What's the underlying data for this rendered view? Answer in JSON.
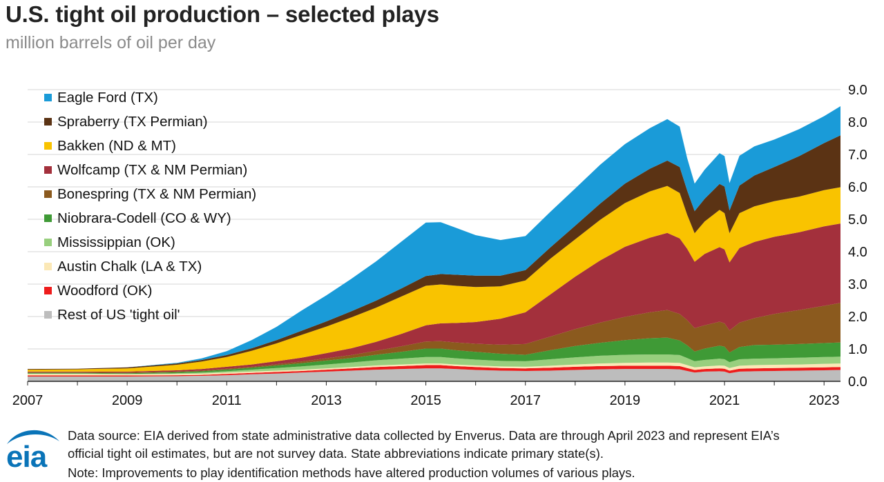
{
  "title": "U.S. tight oil production – selected plays",
  "subtitle": "million barrels of oil per day",
  "legend": [
    {
      "label": "Eagle Ford (TX)",
      "color": "#1a9bd8"
    },
    {
      "label": "Spraberry (TX Permian)",
      "color": "#5b3314"
    },
    {
      "label": "Bakken (ND & MT)",
      "color": "#f9c300"
    },
    {
      "label": "Wolfcamp (TX & NM Permian)",
      "color": "#a3303c"
    },
    {
      "label": "Bonespring (TX & NM Permian)",
      "color": "#8b5a1e"
    },
    {
      "label": "Niobrara-Codell (CO & WY)",
      "color": "#3f9a36"
    },
    {
      "label": "Mississippian (OK)",
      "color": "#98cf7e"
    },
    {
      "label": "Austin Chalk (LA & TX)",
      "color": "#fbe8b6"
    },
    {
      "label": "Woodford (OK)",
      "color": "#ee1c1c"
    },
    {
      "label": "Rest of US 'tight oil'",
      "color": "#bdbdbd"
    }
  ],
  "footer": {
    "logo_text": "eia",
    "source_line1": "Data source: EIA derived from state administrative data collected by Enverus. Data are through April 2023 and represent EIA’s",
    "source_line2": "official tight oil estimates, but are not survey data. State abbreviations indicate primary state(s).",
    "note": "Note: Improvements to play identification methods have altered production volumes of various plays."
  },
  "chart_data": {
    "type": "area",
    "stacked": true,
    "title": "U.S. tight oil production – selected plays",
    "ylabel": "million barrels of oil per day",
    "xlabel": "",
    "ylim": [
      0,
      9
    ],
    "xlim": [
      2007.0,
      2023.33
    ],
    "y_axis_side": "right",
    "y_ticks": [
      "0.0",
      "1.0",
      "2.0",
      "3.0",
      "4.0",
      "5.0",
      "6.0",
      "7.0",
      "8.0",
      "9.0"
    ],
    "x_ticks": [
      "2007",
      "2009",
      "2011",
      "2013",
      "2015",
      "2017",
      "2019",
      "2021",
      "2023"
    ],
    "grid": true,
    "legend_position": "top-left",
    "x": [
      2007.0,
      2008.0,
      2009.0,
      2010.0,
      2010.5,
      2011.0,
      2011.5,
      2012.0,
      2012.5,
      2013.0,
      2013.5,
      2014.0,
      2014.5,
      2015.0,
      2015.3,
      2015.6,
      2016.0,
      2016.5,
      2017.0,
      2017.5,
      2018.0,
      2018.5,
      2019.0,
      2019.5,
      2019.85,
      2020.1,
      2020.25,
      2020.4,
      2020.6,
      2020.9,
      2021.0,
      2021.1,
      2021.3,
      2021.6,
      2022.0,
      2022.5,
      2023.0,
      2023.33
    ],
    "series": [
      {
        "name": "Rest of US 'tight oil'",
        "values": [
          0.15,
          0.15,
          0.15,
          0.16,
          0.17,
          0.19,
          0.22,
          0.24,
          0.27,
          0.3,
          0.33,
          0.36,
          0.38,
          0.4,
          0.4,
          0.38,
          0.35,
          0.33,
          0.32,
          0.33,
          0.35,
          0.37,
          0.38,
          0.38,
          0.38,
          0.37,
          0.32,
          0.27,
          0.3,
          0.31,
          0.3,
          0.25,
          0.3,
          0.31,
          0.32,
          0.33,
          0.34,
          0.35
        ]
      },
      {
        "name": "Woodford (OK)",
        "values": [
          0.03,
          0.03,
          0.03,
          0.03,
          0.03,
          0.04,
          0.04,
          0.05,
          0.05,
          0.06,
          0.07,
          0.08,
          0.09,
          0.1,
          0.1,
          0.09,
          0.09,
          0.08,
          0.08,
          0.09,
          0.1,
          0.1,
          0.1,
          0.1,
          0.1,
          0.1,
          0.09,
          0.08,
          0.08,
          0.09,
          0.09,
          0.08,
          0.09,
          0.09,
          0.09,
          0.09,
          0.09,
          0.09
        ]
      },
      {
        "name": "Austin Chalk (LA & TX)",
        "values": [
          0.05,
          0.05,
          0.04,
          0.04,
          0.04,
          0.04,
          0.04,
          0.04,
          0.04,
          0.04,
          0.04,
          0.05,
          0.05,
          0.05,
          0.05,
          0.05,
          0.05,
          0.05,
          0.05,
          0.06,
          0.07,
          0.08,
          0.09,
          0.1,
          0.1,
          0.1,
          0.09,
          0.08,
          0.08,
          0.09,
          0.09,
          0.08,
          0.09,
          0.1,
          0.1,
          0.1,
          0.11,
          0.11
        ]
      },
      {
        "name": "Mississippian (OK)",
        "values": [
          0.01,
          0.01,
          0.01,
          0.02,
          0.03,
          0.04,
          0.06,
          0.08,
          0.1,
          0.12,
          0.14,
          0.16,
          0.18,
          0.2,
          0.2,
          0.19,
          0.18,
          0.17,
          0.17,
          0.2,
          0.22,
          0.24,
          0.25,
          0.25,
          0.25,
          0.24,
          0.22,
          0.19,
          0.2,
          0.21,
          0.2,
          0.18,
          0.2,
          0.2,
          0.2,
          0.21,
          0.21,
          0.21
        ]
      },
      {
        "name": "Niobrara-Codell (CO & WY)",
        "values": [
          0.02,
          0.02,
          0.02,
          0.03,
          0.04,
          0.05,
          0.06,
          0.08,
          0.1,
          0.12,
          0.14,
          0.17,
          0.21,
          0.26,
          0.26,
          0.25,
          0.24,
          0.22,
          0.2,
          0.28,
          0.35,
          0.4,
          0.45,
          0.5,
          0.52,
          0.45,
          0.39,
          0.3,
          0.35,
          0.4,
          0.39,
          0.3,
          0.38,
          0.42,
          0.42,
          0.42,
          0.43,
          0.44
        ]
      },
      {
        "name": "Bonespring (TX & NM Permian)",
        "values": [
          0.02,
          0.02,
          0.02,
          0.02,
          0.02,
          0.03,
          0.03,
          0.04,
          0.05,
          0.07,
          0.09,
          0.12,
          0.17,
          0.22,
          0.23,
          0.24,
          0.25,
          0.28,
          0.33,
          0.42,
          0.52,
          0.62,
          0.72,
          0.8,
          0.85,
          0.82,
          0.78,
          0.72,
          0.72,
          0.74,
          0.72,
          0.68,
          0.75,
          0.83,
          0.95,
          1.05,
          1.15,
          1.22
        ]
      },
      {
        "name": "Wolfcamp (TX & NM Permian)",
        "values": [
          0.02,
          0.02,
          0.03,
          0.04,
          0.05,
          0.06,
          0.07,
          0.09,
          0.12,
          0.16,
          0.21,
          0.28,
          0.38,
          0.5,
          0.55,
          0.6,
          0.67,
          0.8,
          0.98,
          1.3,
          1.62,
          1.92,
          2.16,
          2.3,
          2.38,
          2.33,
          2.2,
          2.05,
          2.2,
          2.3,
          2.28,
          2.1,
          2.3,
          2.35,
          2.38,
          2.4,
          2.45,
          2.45
        ]
      },
      {
        "name": "Bakken (ND & MT)",
        "values": [
          0.06,
          0.07,
          0.1,
          0.17,
          0.23,
          0.3,
          0.42,
          0.55,
          0.7,
          0.82,
          0.95,
          1.05,
          1.15,
          1.22,
          1.2,
          1.15,
          1.08,
          1.0,
          0.98,
          1.1,
          1.15,
          1.25,
          1.35,
          1.43,
          1.45,
          1.4,
          1.05,
          0.88,
          1.0,
          1.15,
          1.12,
          0.9,
          1.08,
          1.1,
          1.1,
          1.1,
          1.12,
          1.12
        ]
      },
      {
        "name": "Spraberry (TX Permian)",
        "values": [
          0.02,
          0.02,
          0.03,
          0.04,
          0.05,
          0.06,
          0.08,
          0.1,
          0.13,
          0.16,
          0.19,
          0.22,
          0.25,
          0.3,
          0.32,
          0.34,
          0.35,
          0.33,
          0.32,
          0.35,
          0.42,
          0.5,
          0.6,
          0.7,
          0.78,
          0.8,
          0.75,
          0.68,
          0.7,
          0.8,
          0.82,
          0.7,
          0.85,
          0.95,
          1.05,
          1.25,
          1.45,
          1.6
        ]
      },
      {
        "name": "Eagle Ford (TX)",
        "values": [
          0.0,
          0.0,
          0.0,
          0.02,
          0.05,
          0.12,
          0.25,
          0.41,
          0.62,
          0.8,
          1.0,
          1.21,
          1.44,
          1.65,
          1.6,
          1.45,
          1.25,
          1.1,
          1.05,
          1.1,
          1.15,
          1.2,
          1.22,
          1.25,
          1.28,
          1.25,
          1.0,
          0.85,
          0.9,
          0.95,
          0.94,
          0.85,
          0.92,
          0.9,
          0.85,
          0.83,
          0.83,
          0.9
        ]
      }
    ]
  }
}
